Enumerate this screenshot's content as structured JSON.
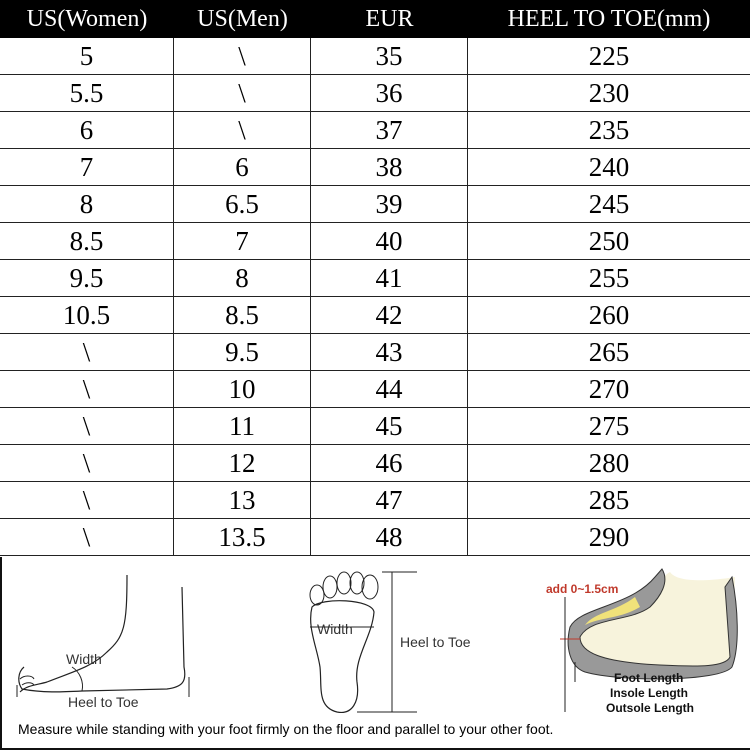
{
  "headers": [
    "US(Women)",
    "US(Men)",
    "EUR",
    "HEEL TO TOE(mm)"
  ],
  "rows": [
    [
      "5",
      "\\",
      "35",
      "225"
    ],
    [
      "5.5",
      "\\",
      "36",
      "230"
    ],
    [
      "6",
      "\\",
      "37",
      "235"
    ],
    [
      "7",
      "6",
      "38",
      "240"
    ],
    [
      "8",
      "6.5",
      "39",
      "245"
    ],
    [
      "8.5",
      "7",
      "40",
      "250"
    ],
    [
      "9.5",
      "8",
      "41",
      "255"
    ],
    [
      "10.5",
      "8.5",
      "42",
      "260"
    ],
    [
      "\\",
      "9.5",
      "43",
      "265"
    ],
    [
      "\\",
      "10",
      "44",
      "270"
    ],
    [
      "\\",
      "11",
      "45",
      "275"
    ],
    [
      "\\",
      "12",
      "46",
      "280"
    ],
    [
      "\\",
      "13",
      "47",
      "285"
    ],
    [
      "\\",
      "13.5",
      "48",
      "290"
    ]
  ],
  "diagram": {
    "side_width": "Width",
    "side_heel_to_toe": "Heel to Toe",
    "top_width": "Width",
    "top_heel_to_toe": "Heel to Toe",
    "add_note": "add 0~1.5cm",
    "foot_length": "Foot Length",
    "insole_length": "Insole Length",
    "outsole_length": "Outsole Length",
    "accent_color": "#c0392b"
  },
  "instruction": "Measure while standing with your foot firmly on the floor and parallel to your other foot."
}
